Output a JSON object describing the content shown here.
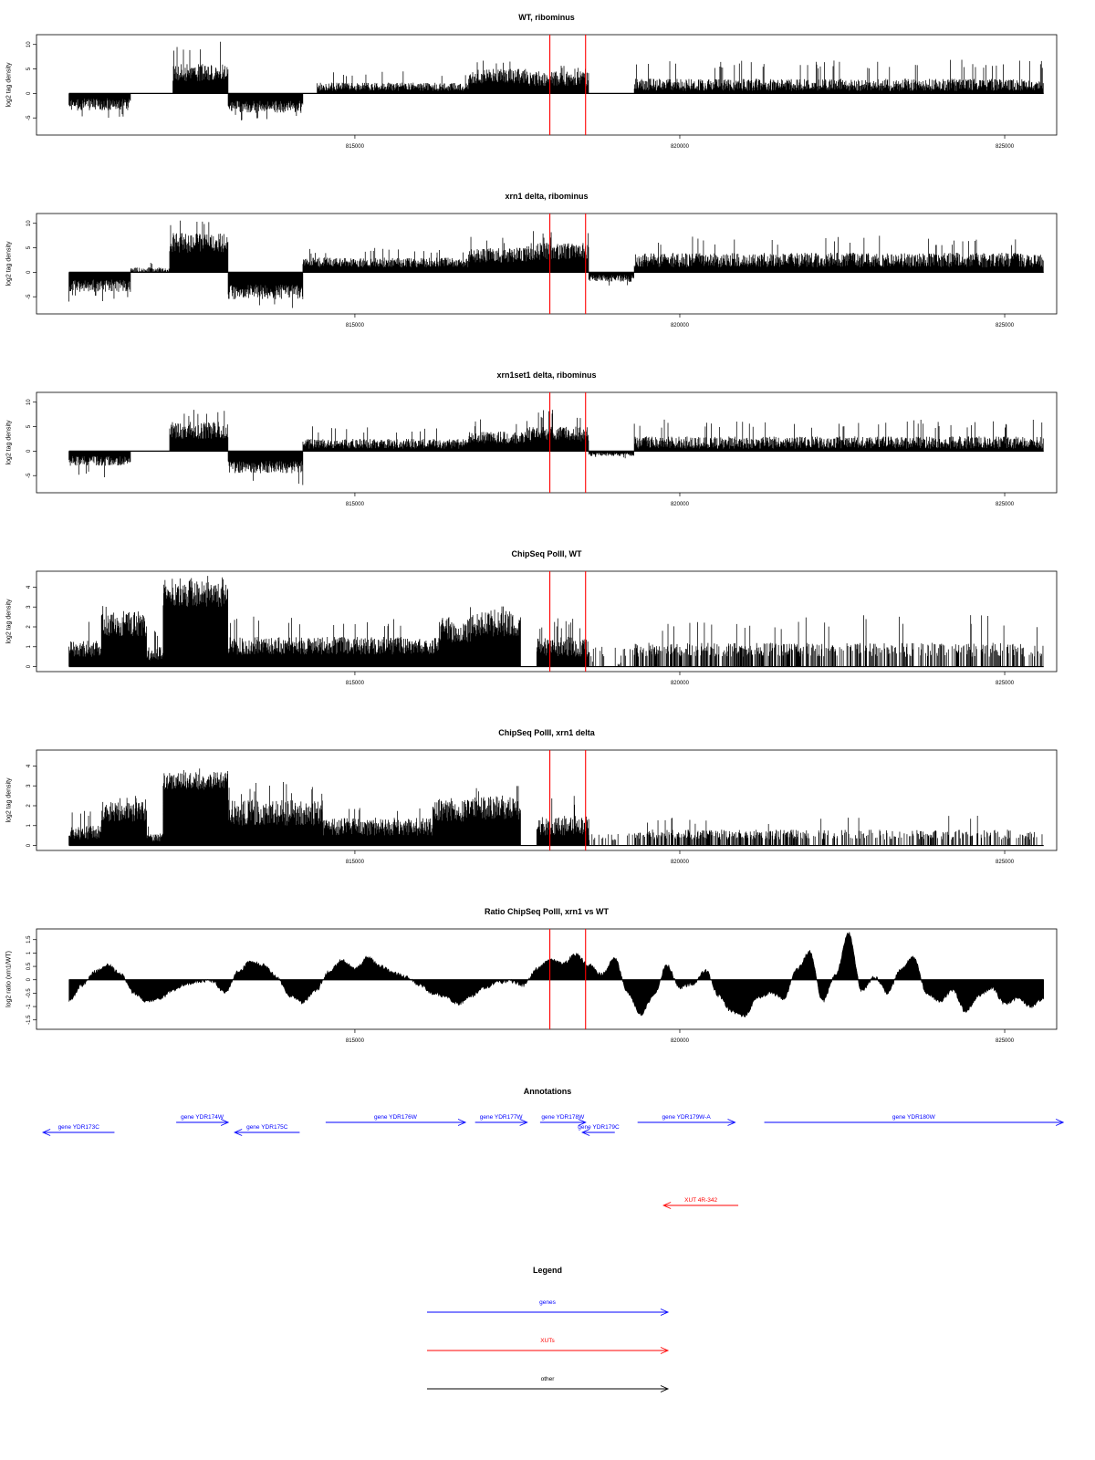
{
  "colors": {
    "bars": "#000000",
    "marker": "#ff0000",
    "gene": "#0000ff",
    "xut": "#ff0000",
    "other": "#000000"
  },
  "chart_data": [
    {
      "type": "bar",
      "title": "WT, ribominus",
      "ylabel": "log2 tag density",
      "xlim": [
        810100,
        825800
      ],
      "ylim": [
        -8.5,
        12
      ],
      "yticks": [
        -5,
        0,
        5,
        10
      ],
      "ytick_labels": [
        "-5",
        "0",
        "5",
        "10"
      ],
      "xticks": [
        815000,
        820000,
        825000
      ],
      "xtick_labels": [
        "815000",
        "820000",
        "825000"
      ],
      "markers": [
        818000,
        818550
      ],
      "x_range": [
        810600,
        825600
      ],
      "segments": [
        {
          "x": [
            810600,
            811550
          ],
          "sign": -1,
          "lo": 1,
          "hi": 3.5,
          "max": 5.5
        },
        {
          "x": [
            811550,
            812200
          ],
          "sign": 0
        },
        {
          "x": [
            812200,
            813050
          ],
          "sign": 1,
          "lo": 2.5,
          "hi": 6,
          "max": 10.7
        },
        {
          "x": [
            813050,
            814200
          ],
          "sign": -1,
          "lo": 1.5,
          "hi": 4,
          "max": 5.5
        },
        {
          "x": [
            814200,
            814420
          ],
          "sign": 0
        },
        {
          "x": [
            814420,
            816750
          ],
          "sign": 1,
          "lo": 0.5,
          "hi": 2.2,
          "max": 4.5
        },
        {
          "x": [
            816750,
            817650
          ],
          "sign": 1,
          "lo": 2,
          "hi": 5,
          "max": 6.8
        },
        {
          "x": [
            817650,
            818600
          ],
          "sign": 1,
          "lo": 1.5,
          "hi": 4.5,
          "max": 6.5
        },
        {
          "x": [
            818600,
            819300
          ],
          "sign": 0
        },
        {
          "x": [
            819300,
            825600
          ],
          "sign": 1,
          "lo": 0.5,
          "hi": 3,
          "max": 7
        }
      ]
    },
    {
      "type": "bar",
      "title": "xrn1 delta, ribominus",
      "ylabel": "log2 tag density",
      "xlim": [
        810100,
        825800
      ],
      "ylim": [
        -8.5,
        12
      ],
      "yticks": [
        -5,
        0,
        5,
        10
      ],
      "ytick_labels": [
        "-5",
        "0",
        "5",
        "10"
      ],
      "xticks": [
        815000,
        820000,
        825000
      ],
      "xtick_labels": [
        "815000",
        "820000",
        "825000"
      ],
      "markers": [
        818000,
        818550
      ],
      "x_range": [
        810600,
        825600
      ],
      "segments": [
        {
          "x": [
            810600,
            811550
          ],
          "sign": -1,
          "lo": 1.5,
          "hi": 4,
          "max": 6
        },
        {
          "x": [
            811550,
            812150
          ],
          "sign": 1,
          "lo": 0,
          "hi": 1,
          "max": 2
        },
        {
          "x": [
            812150,
            813050
          ],
          "sign": 1,
          "lo": 4,
          "hi": 8,
          "max": 10.8
        },
        {
          "x": [
            813050,
            814200
          ],
          "sign": -1,
          "lo": 2.5,
          "hi": 5.5,
          "max": 7.5
        },
        {
          "x": [
            814200,
            816750
          ],
          "sign": 1,
          "lo": 1,
          "hi": 3,
          "max": 5
        },
        {
          "x": [
            816750,
            817650
          ],
          "sign": 1,
          "lo": 2,
          "hi": 5,
          "max": 7.5
        },
        {
          "x": [
            817650,
            818600
          ],
          "sign": 1,
          "lo": 2.5,
          "hi": 6,
          "max": 9
        },
        {
          "x": [
            818600,
            819300
          ],
          "sign": -1,
          "lo": 0.5,
          "hi": 2,
          "max": 3
        },
        {
          "x": [
            819300,
            825600
          ],
          "sign": 1,
          "lo": 1,
          "hi": 4,
          "max": 7.5
        }
      ]
    },
    {
      "type": "bar",
      "title": "xrn1set1 delta, ribominus",
      "ylabel": "log2 tag density",
      "xlim": [
        810100,
        825800
      ],
      "ylim": [
        -8.5,
        12
      ],
      "yticks": [
        -5,
        0,
        5,
        10
      ],
      "ytick_labels": [
        "-5",
        "0",
        "5",
        "10"
      ],
      "xticks": [
        815000,
        820000,
        825000
      ],
      "xtick_labels": [
        "815000",
        "820000",
        "825000"
      ],
      "markers": [
        818000,
        818550
      ],
      "x_range": [
        810600,
        825600
      ],
      "segments": [
        {
          "x": [
            810600,
            811550
          ],
          "sign": -1,
          "lo": 1,
          "hi": 3,
          "max": 5.5
        },
        {
          "x": [
            811550,
            812150
          ],
          "sign": 0
        },
        {
          "x": [
            812150,
            813050
          ],
          "sign": 1,
          "lo": 2.5,
          "hi": 6,
          "max": 9
        },
        {
          "x": [
            813050,
            814200
          ],
          "sign": -1,
          "lo": 2,
          "hi": 4.5,
          "max": 7
        },
        {
          "x": [
            814200,
            816750
          ],
          "sign": 1,
          "lo": 0.5,
          "hi": 2.5,
          "max": 5.2
        },
        {
          "x": [
            816750,
            817650
          ],
          "sign": 1,
          "lo": 1.5,
          "hi": 4,
          "max": 6.5
        },
        {
          "x": [
            817650,
            818600
          ],
          "sign": 1,
          "lo": 2,
          "hi": 5,
          "max": 8.5
        },
        {
          "x": [
            818600,
            819300
          ],
          "sign": -1,
          "lo": 0.3,
          "hi": 1,
          "max": 1.5
        },
        {
          "x": [
            819300,
            825600
          ],
          "sign": 1,
          "lo": 0.5,
          "hi": 3,
          "max": 6.5
        }
      ]
    },
    {
      "type": "bar",
      "title": "ChipSeq PolII, WT",
      "ylabel": "log2 tag density",
      "xlim": [
        810100,
        825800
      ],
      "ylim": [
        -0.25,
        4.8
      ],
      "yticks": [
        0,
        1,
        2,
        3,
        4
      ],
      "ytick_labels": [
        "0",
        "1",
        "2",
        "3",
        "4"
      ],
      "xticks": [
        815000,
        820000,
        825000
      ],
      "xtick_labels": [
        "815000",
        "820000",
        "825000"
      ],
      "markers": [
        818000,
        818550
      ],
      "x_range": [
        810600,
        825600
      ],
      "segments": [
        {
          "x": [
            810600,
            811100
          ],
          "sign": 1,
          "lo": 0.5,
          "hi": 1.3,
          "max": 2.3
        },
        {
          "x": [
            811100,
            811800
          ],
          "sign": 1,
          "lo": 1.5,
          "hi": 2.8,
          "max": 3.2
        },
        {
          "x": [
            811800,
            812050
          ],
          "sign": 1,
          "lo": 0.3,
          "hi": 1,
          "max": 2
        },
        {
          "x": [
            812050,
            813050
          ],
          "sign": 1,
          "lo": 3,
          "hi": 4.3,
          "max": 4.6
        },
        {
          "x": [
            813050,
            816300
          ],
          "sign": 1,
          "lo": 0.6,
          "hi": 1.5,
          "max": 2.6
        },
        {
          "x": [
            816300,
            816800
          ],
          "sign": 1,
          "lo": 1.2,
          "hi": 2.5,
          "max": 3
        },
        {
          "x": [
            816800,
            817550
          ],
          "sign": 1,
          "lo": 1.5,
          "hi": 2.8,
          "max": 3.1
        },
        {
          "x": [
            817550,
            817800
          ],
          "sign": 0
        },
        {
          "x": [
            817800,
            818600
          ],
          "sign": 1,
          "lo": 0.5,
          "hi": 1.5,
          "max": 2.5
        },
        {
          "x": [
            818600,
            819300
          ],
          "sign": 1,
          "lo": 0,
          "hi": 1,
          "max": 1,
          "sparse": 0.2
        },
        {
          "x": [
            819300,
            821900
          ],
          "sign": 1,
          "lo": 0.5,
          "hi": 1.2,
          "max": 2.3,
          "sparse": 0.55
        },
        {
          "x": [
            821900,
            825600
          ],
          "sign": 1,
          "lo": 0.5,
          "hi": 1.2,
          "max": 2.6,
          "sparse": 0.4
        }
      ]
    },
    {
      "type": "bar",
      "title": "ChipSeq PolII, xrn1 delta",
      "ylabel": "log2 tag density",
      "xlim": [
        810100,
        825800
      ],
      "ylim": [
        -0.25,
        4.8
      ],
      "yticks": [
        0,
        1,
        2,
        3,
        4
      ],
      "ytick_labels": [
        "0",
        "1",
        "2",
        "3",
        "4"
      ],
      "xticks": [
        815000,
        820000,
        825000
      ],
      "xtick_labels": [
        "815000",
        "820000",
        "825000"
      ],
      "markers": [
        818000,
        818550
      ],
      "x_range": [
        810600,
        825600
      ],
      "segments": [
        {
          "x": [
            810600,
            811100
          ],
          "sign": 1,
          "lo": 0.3,
          "hi": 1,
          "max": 1.8
        },
        {
          "x": [
            811100,
            811800
          ],
          "sign": 1,
          "lo": 1.2,
          "hi": 2.2,
          "max": 2.5
        },
        {
          "x": [
            811800,
            812050
          ],
          "sign": 1,
          "lo": 0.2,
          "hi": 0.6,
          "max": 1
        },
        {
          "x": [
            812050,
            813050
          ],
          "sign": 1,
          "lo": 2.8,
          "hi": 3.7,
          "max": 4
        },
        {
          "x": [
            813050,
            814500
          ],
          "sign": 1,
          "lo": 1,
          "hi": 2.3,
          "max": 3.2
        },
        {
          "x": [
            814500,
            816200
          ],
          "sign": 1,
          "lo": 0.5,
          "hi": 1.4,
          "max": 2
        },
        {
          "x": [
            816200,
            816800
          ],
          "sign": 1,
          "lo": 1.2,
          "hi": 2.3,
          "max": 2.5
        },
        {
          "x": [
            816800,
            817550
          ],
          "sign": 1,
          "lo": 1.3,
          "hi": 2.5,
          "max": 3
        },
        {
          "x": [
            817550,
            817800
          ],
          "sign": 0
        },
        {
          "x": [
            817800,
            818600
          ],
          "sign": 1,
          "lo": 0.5,
          "hi": 1.5,
          "max": 2.5
        },
        {
          "x": [
            818600,
            819300
          ],
          "sign": 1,
          "lo": 0.2,
          "hi": 0.6,
          "max": 0.8,
          "sparse": 0.15
        },
        {
          "x": [
            819300,
            821900
          ],
          "sign": 1,
          "lo": 0.3,
          "hi": 0.8,
          "max": 1.4,
          "sparse": 0.6
        },
        {
          "x": [
            821900,
            825600
          ],
          "sign": 1,
          "lo": 0.3,
          "hi": 0.8,
          "max": 1.6,
          "sparse": 0.35
        }
      ]
    },
    {
      "type": "area",
      "title": "Ratio ChipSeq PolII, xrn1 vs WT",
      "ylabel": "log2 ratio (xrn1/WT)",
      "xlim": [
        810100,
        825800
      ],
      "ylim": [
        -1.85,
        1.9
      ],
      "yticks": [
        -1.5,
        -1,
        -0.5,
        0,
        0.5,
        1,
        1.5
      ],
      "ytick_labels": [
        "-1.5",
        "-1",
        "-0.5",
        "0",
        "0.5",
        "1",
        "1.5"
      ],
      "xticks": [
        815000,
        820000,
        825000
      ],
      "xtick_labels": [
        "815000",
        "820000",
        "825000"
      ],
      "markers": [
        818000,
        818550
      ],
      "x": [
        810600,
        810800,
        811000,
        811200,
        811400,
        811600,
        811800,
        812000,
        812200,
        812400,
        812600,
        812800,
        813000,
        813200,
        813400,
        813600,
        813800,
        814000,
        814200,
        814400,
        814600,
        814800,
        815000,
        815200,
        815400,
        815600,
        815800,
        816000,
        816200,
        816400,
        816600,
        816800,
        817000,
        817200,
        817400,
        817600,
        817800,
        818000,
        818200,
        818400,
        818600,
        818800,
        819000,
        819200,
        819400,
        819600,
        819800,
        820000,
        820200,
        820400,
        820600,
        820800,
        821000,
        821200,
        821400,
        821600,
        821800,
        822000,
        822200,
        822400,
        822600,
        822800,
        823000,
        823200,
        823400,
        823600,
        823800,
        824000,
        824200,
        824400,
        824600,
        824800,
        825000,
        825200,
        825400,
        825600
      ],
      "y": [
        -0.8,
        -0.2,
        0.3,
        0.55,
        0.2,
        -0.5,
        -0.8,
        -0.7,
        -0.4,
        -0.15,
        -0.05,
        -0.05,
        -0.5,
        0.3,
        0.7,
        0.55,
        0.1,
        -0.6,
        -0.85,
        -0.4,
        0.3,
        0.75,
        0.4,
        0.85,
        0.5,
        0.25,
        0.1,
        -0.2,
        -0.5,
        -0.65,
        -0.9,
        -0.6,
        -0.3,
        -0.1,
        -0.05,
        -0.2,
        0.4,
        0.75,
        0.6,
        0.95,
        0.55,
        0.2,
        0.8,
        -0.5,
        -1.3,
        -0.6,
        0.55,
        -0.3,
        -0.15,
        0.35,
        -0.6,
        -1.2,
        -1.35,
        -0.65,
        -0.5,
        -0.7,
        0.4,
        1.05,
        -0.8,
        0.2,
        1.75,
        -0.4,
        0.1,
        -0.5,
        0.4,
        0.85,
        -0.5,
        -0.8,
        -0.4,
        -1.2,
        -0.6,
        -0.3,
        -0.9,
        -0.7,
        -1.0,
        -0.7
      ]
    }
  ],
  "annotations": {
    "title": "Annotations",
    "genes": [
      {
        "label": "gene YDR173C",
        "start": 811300,
        "end": 810200,
        "row": 1
      },
      {
        "label": "gene YDR174W",
        "start": 812250,
        "end": 813050,
        "row": 0
      },
      {
        "label": "gene YDR175C",
        "start": 814150,
        "end": 813150,
        "row": 1
      },
      {
        "label": "gene YDR176W",
        "start": 814550,
        "end": 816700,
        "row": 0
      },
      {
        "label": "gene YDR177W",
        "start": 816850,
        "end": 817650,
        "row": 0
      },
      {
        "label": "gene YDR178W",
        "start": 817850,
        "end": 818550,
        "row": 0
      },
      {
        "label": "gene YDR179C",
        "start": 819000,
        "end": 818500,
        "row": 1
      },
      {
        "label": "gene YDR179W-A",
        "start": 819350,
        "end": 820850,
        "row": 0
      },
      {
        "label": "gene YDR180W",
        "start": 821300,
        "end": 825900,
        "row": 0
      }
    ],
    "xuts": [
      {
        "label": "XUT 4R-342",
        "start": 820900,
        "end": 819750
      }
    ]
  },
  "legend": {
    "title": "Legend",
    "items": [
      {
        "label": "genes",
        "kind": "gene"
      },
      {
        "label": "XUTs",
        "kind": "xut"
      },
      {
        "label": "other",
        "kind": "other"
      }
    ]
  }
}
